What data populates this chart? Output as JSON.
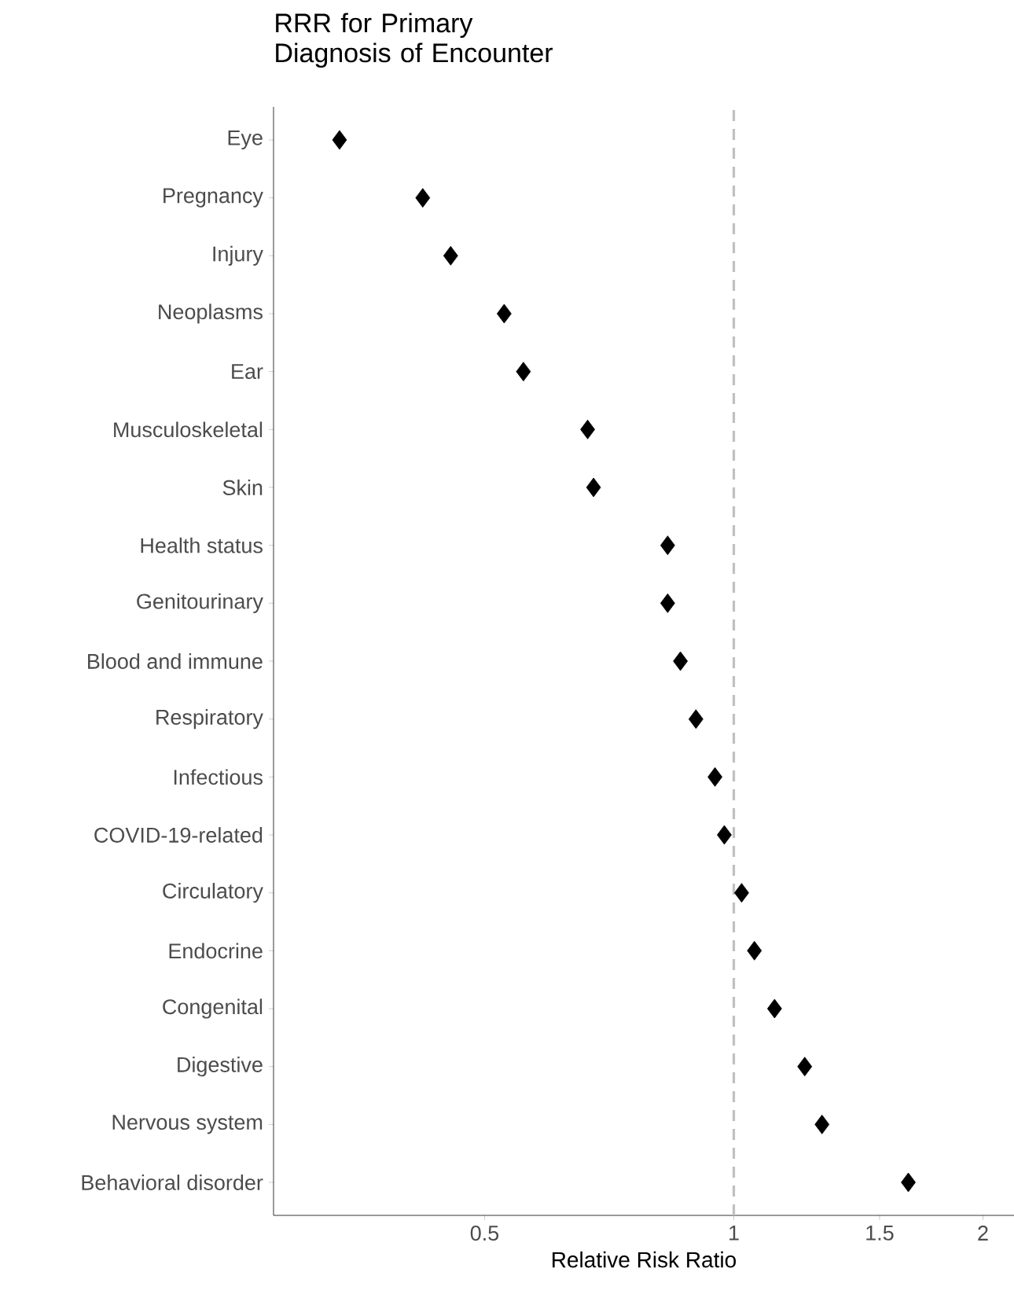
{
  "chart_data": {
    "type": "scatter",
    "orientation": "horizontal",
    "title": "RRR for Primary Diagnosis of Encounter",
    "xlabel": "Relative Risk Ratio",
    "categories": [
      "Eye",
      "Pregnancy",
      "Injury",
      "Neoplasms",
      "Ear",
      "Musculoskeletal",
      "Skin",
      "Health status",
      "Genitourinary",
      "Blood and immune",
      "Respiratory",
      "Infectious",
      "COVID-19-related",
      "Circulatory",
      "Endocrine",
      "Congenital",
      "Digestive",
      "Nervous system",
      "Behavioral disorder"
    ],
    "values": [
      0.334,
      0.421,
      0.455,
      0.528,
      0.557,
      0.666,
      0.677,
      0.832,
      0.832,
      0.862,
      0.9,
      0.949,
      0.974,
      1.022,
      1.059,
      1.12,
      1.218,
      1.278,
      1.625
    ],
    "color": "#000000",
    "marker": "diamond",
    "log": "x",
    "xlim": [
      0.278,
      2.18
    ],
    "xticks": [
      0.5,
      1,
      1.5,
      2
    ],
    "ref_lines": [
      {
        "axis": "x",
        "value": 1,
        "color": "#c0c0c0",
        "line_style": "dashed"
      }
    ],
    "grid": false
  }
}
